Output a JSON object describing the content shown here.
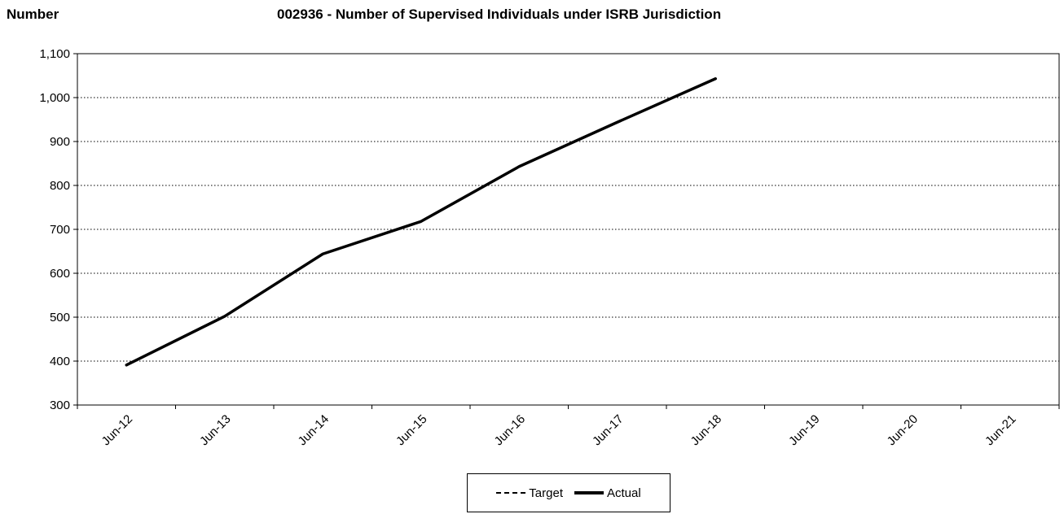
{
  "chart_data": {
    "type": "line",
    "title": "002936 - Number of Supervised Individuals under ISRB Jurisdiction",
    "ylabel": "Number",
    "xlabel": "",
    "categories": [
      "Jun-12",
      "Jun-13",
      "Jun-14",
      "Jun-15",
      "Jun-16",
      "Jun-17",
      "Jun-18",
      "Jun-19",
      "Jun-20",
      "Jun-21"
    ],
    "ylim": [
      300,
      1100
    ],
    "yticks": [
      300,
      400,
      500,
      600,
      700,
      800,
      900,
      1000,
      1100
    ],
    "ytick_labels": [
      "300",
      "400",
      "500",
      "600",
      "700",
      "800",
      "900",
      "1,000",
      "1,100"
    ],
    "grid": true,
    "legend_position": "bottom-center",
    "series": [
      {
        "name": "Target",
        "style": "dashed",
        "color": "#000000",
        "values": [
          null,
          null,
          null,
          null,
          null,
          null,
          null,
          null,
          null,
          null
        ]
      },
      {
        "name": "Actual",
        "style": "solid",
        "color": "#000000",
        "values": [
          391,
          502,
          644,
          718,
          843,
          944,
          1043,
          null,
          null,
          null
        ]
      }
    ]
  }
}
